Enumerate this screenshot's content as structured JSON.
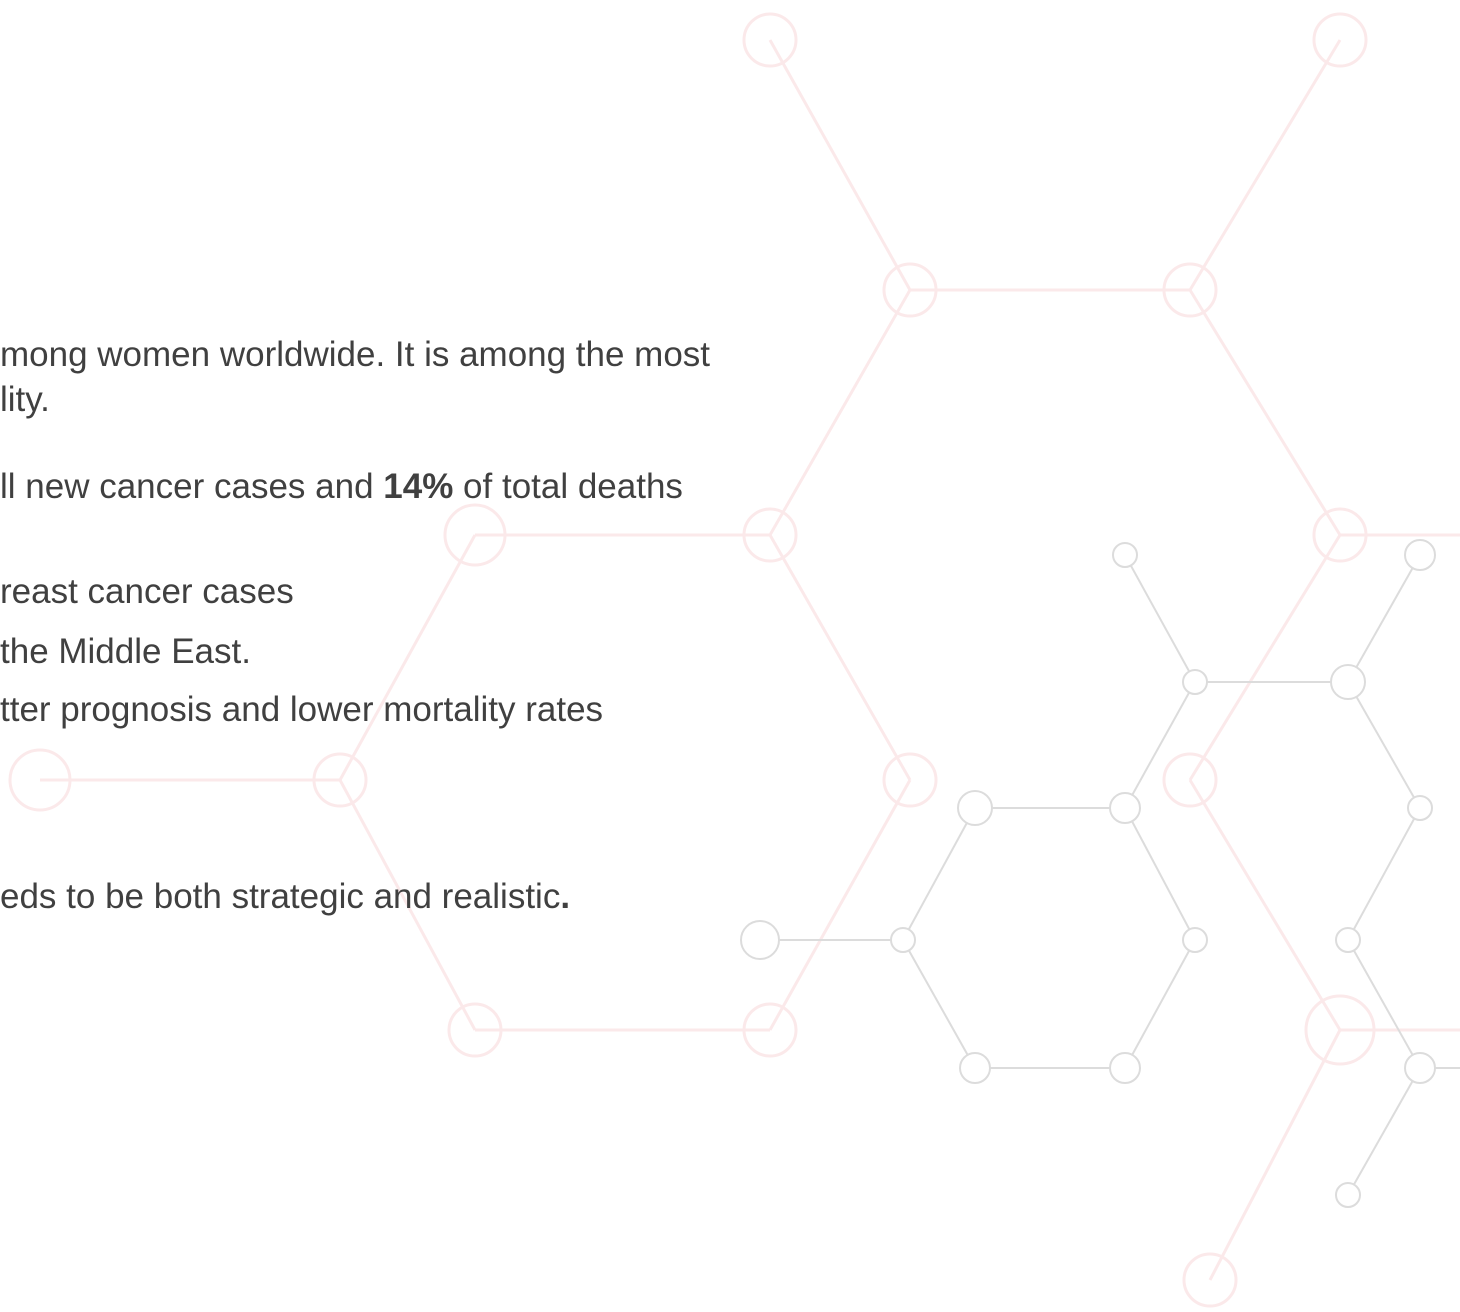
{
  "lines": [
    {
      "segments": [
        {
          "text": "mong women worldwide. It is among the most"
        }
      ]
    },
    {
      "segments": [
        {
          "text": "lity."
        }
      ]
    },
    {
      "segments": [
        {
          "text": "ll new cancer cases and "
        },
        {
          "text": "14%",
          "bold": true
        },
        {
          "text": " of total deaths"
        }
      ]
    },
    {
      "segments": [
        {
          "text": "reast cancer cases"
        }
      ]
    },
    {
      "segments": [
        {
          "text": "the Middle East."
        }
      ]
    },
    {
      "segments": [
        {
          "text": "tter prognosis and lower mortality rates"
        }
      ]
    },
    {
      "segments": [
        {
          "text": "eds to be both strategic and realistic"
        },
        {
          "text": ".",
          "bold": true
        }
      ]
    }
  ]
}
